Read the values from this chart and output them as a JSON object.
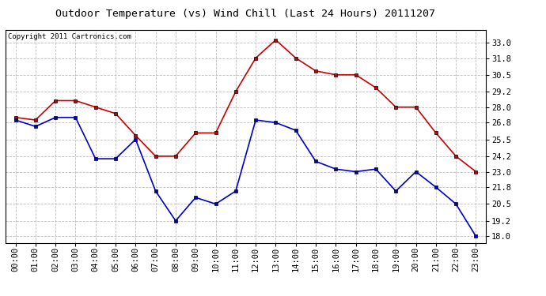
{
  "title": "Outdoor Temperature (vs) Wind Chill (Last 24 Hours) 20111207",
  "copyright": "Copyright 2011 Cartronics.com",
  "x_labels": [
    "00:00",
    "01:00",
    "02:00",
    "03:00",
    "04:00",
    "05:00",
    "06:00",
    "07:00",
    "08:00",
    "09:00",
    "10:00",
    "11:00",
    "12:00",
    "13:00",
    "14:00",
    "15:00",
    "16:00",
    "17:00",
    "18:00",
    "19:00",
    "20:00",
    "21:00",
    "22:00",
    "23:00"
  ],
  "temp_red": [
    27.2,
    27.0,
    28.5,
    28.5,
    28.0,
    27.5,
    25.8,
    24.2,
    24.2,
    26.0,
    26.0,
    29.2,
    31.8,
    33.2,
    31.8,
    30.8,
    30.5,
    30.5,
    29.5,
    28.0,
    28.0,
    26.0,
    24.2,
    23.0
  ],
  "wind_chill_blue": [
    27.0,
    26.5,
    27.2,
    27.2,
    24.0,
    24.0,
    25.5,
    21.5,
    19.2,
    21.0,
    20.5,
    21.5,
    27.0,
    26.8,
    26.2,
    23.8,
    23.2,
    23.0,
    23.2,
    21.5,
    23.0,
    21.8,
    20.5,
    18.0
  ],
  "ylim": [
    17.5,
    34.0
  ],
  "yticks": [
    18.0,
    19.2,
    20.5,
    21.8,
    23.0,
    24.2,
    25.5,
    26.8,
    28.0,
    29.2,
    30.5,
    31.8,
    33.0
  ],
  "red_color": "#cc0000",
  "blue_color": "#0000cc",
  "background_color": "#ffffff",
  "grid_color": "#bbbbbb",
  "title_fontsize": 9.5,
  "copyright_fontsize": 6.5,
  "tick_fontsize": 7.5
}
